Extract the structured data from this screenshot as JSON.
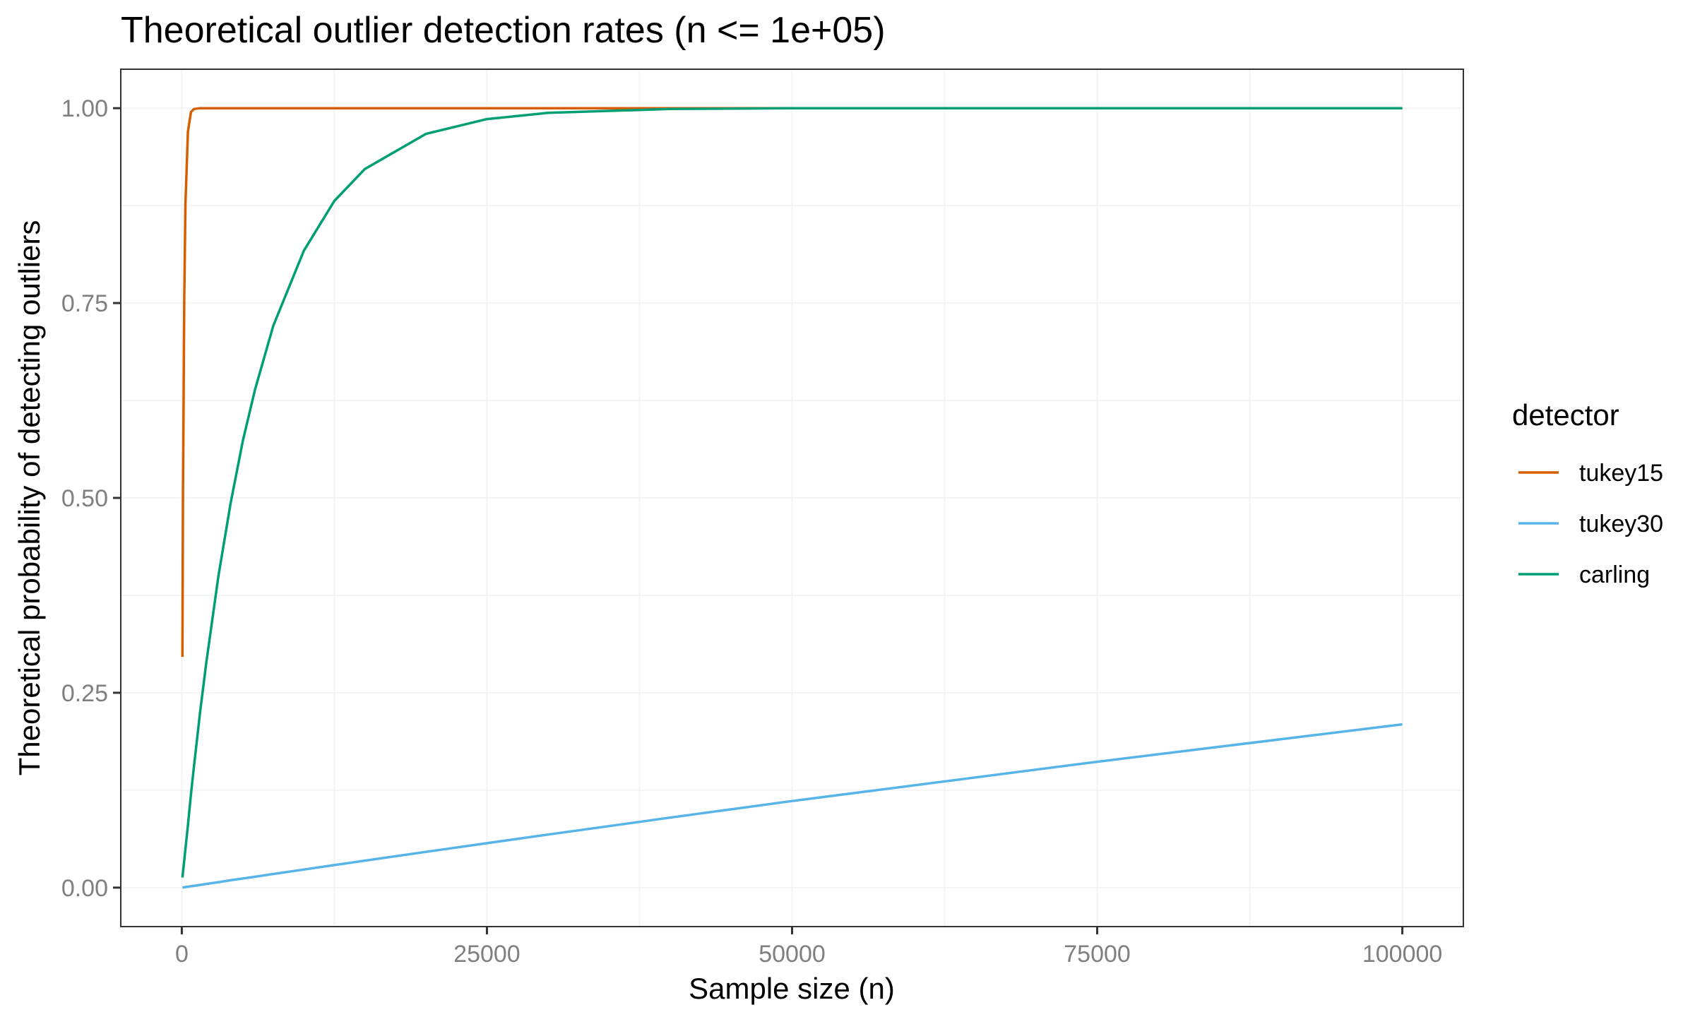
{
  "chart_data": {
    "type": "line",
    "title": "Theoretical outlier detection rates (n <= 1e+05)",
    "xlabel": "Sample size (n)",
    "ylabel": "Theoretical probability of detecting outliers",
    "xlim": [
      -5000,
      105000
    ],
    "ylim": [
      -0.05,
      1.05
    ],
    "xticks": [
      0,
      25000,
      50000,
      75000,
      100000
    ],
    "xtick_labels": [
      "0",
      "25000",
      "50000",
      "75000",
      "100000"
    ],
    "yticks": [
      0,
      0.25,
      0.5,
      0.75,
      1.0
    ],
    "ytick_labels": [
      "0.00",
      "0.25",
      "0.50",
      "0.75",
      "1.00"
    ],
    "grid": true,
    "legend": {
      "title": "detector",
      "placement": "right"
    },
    "x": [
      50,
      100,
      200,
      300,
      500,
      750,
      1000,
      1500,
      2000,
      3000,
      4000,
      5000,
      6000,
      7500,
      10000,
      12500,
      15000,
      20000,
      25000,
      30000,
      40000,
      50000,
      75000,
      100000
    ],
    "series": [
      {
        "name": "tukey15",
        "color": "#D55E00",
        "values": [
          0.296,
          0.505,
          0.755,
          0.878,
          0.97,
          0.995,
          0.999,
          1,
          1,
          1,
          1,
          1,
          1,
          1,
          1,
          1,
          1,
          1,
          1,
          1,
          1,
          1,
          1,
          1
        ]
      },
      {
        "name": "tukey30",
        "color": "#56B4E9",
        "values": [
          0.0001,
          0.0002,
          0.0005,
          0.0007,
          0.0012,
          0.0018,
          0.0023,
          0.0035,
          0.0047,
          0.007,
          0.0094,
          0.0117,
          0.014,
          0.0175,
          0.0232,
          0.0289,
          0.0346,
          0.0459,
          0.057,
          0.0681,
          0.0898,
          0.1111,
          0.1615,
          0.2095
        ]
      },
      {
        "name": "carling",
        "color": "#009E73",
        "values": [
          0.013,
          0.02,
          0.035,
          0.05,
          0.08,
          0.12,
          0.156,
          0.225,
          0.288,
          0.4,
          0.493,
          0.573,
          0.639,
          0.721,
          0.817,
          0.881,
          0.922,
          0.967,
          0.986,
          0.994,
          0.999,
          1.0,
          1.0,
          1.0
        ]
      }
    ]
  }
}
